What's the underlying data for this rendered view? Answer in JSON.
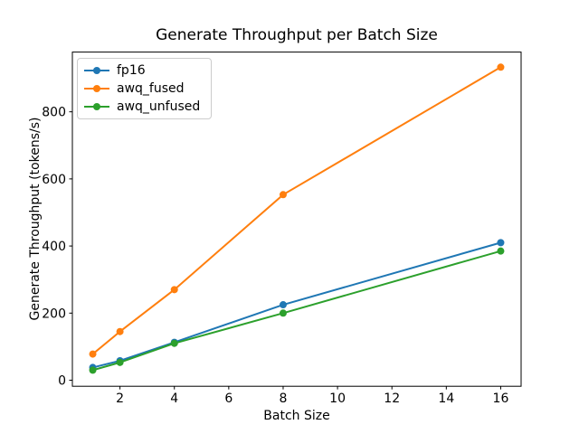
{
  "chart_data": {
    "type": "line",
    "title": "Generate Throughput per Batch Size",
    "xlabel": "Batch Size",
    "ylabel": "Generate Throughput (tokens/s)",
    "x": [
      1,
      2,
      4,
      8,
      16
    ],
    "series": [
      {
        "name": "fp16",
        "color": "#1f77b4",
        "values": [
          38,
          58,
          113,
          225,
          410
        ]
      },
      {
        "name": "awq_fused",
        "color": "#ff7f0e",
        "values": [
          78,
          145,
          270,
          553,
          933
        ]
      },
      {
        "name": "awq_unfused",
        "color": "#2ca02c",
        "values": [
          30,
          53,
          110,
          200,
          385
        ]
      }
    ],
    "xticks": [
      2,
      4,
      6,
      8,
      10,
      12,
      14,
      16
    ],
    "yticks": [
      0,
      200,
      400,
      600,
      800
    ],
    "xlim": [
      0.25,
      16.75
    ],
    "ylim": [
      -18,
      978
    ],
    "grid": false,
    "legend_position": "upper left",
    "marker": "o",
    "axis_color": "#000000",
    "background_color": "#ffffff"
  }
}
